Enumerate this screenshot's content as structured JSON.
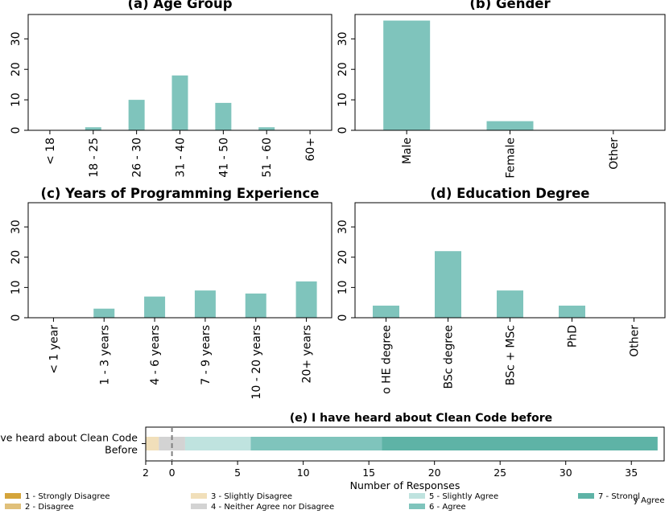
{
  "colors": {
    "bar": "#7fc4bc",
    "strongly_disagree": "#d4a43a",
    "disagree": "#e0c07a",
    "slightly_disagree": "#f1dfba",
    "neutral": "#d3d3d3",
    "slightly_agree": "#bfe3df",
    "agree": "#7fc4bc",
    "strongly_agree": "#5eb3a6"
  },
  "chart_data": [
    {
      "type": "bar",
      "title": "(a) Age Group",
      "categories": [
        "< 18",
        "18 - 25",
        "26 - 30",
        "31 - 40",
        "41 - 50",
        "51 - 60",
        "60+"
      ],
      "values": [
        0,
        1,
        10,
        18,
        9,
        1,
        0
      ],
      "ylim": [
        0,
        38
      ],
      "yticks": [
        0,
        10,
        20,
        30
      ],
      "grid": false
    },
    {
      "type": "bar",
      "title": "(b) Gender",
      "categories": [
        "Male",
        "Female",
        "Other"
      ],
      "values": [
        36,
        3,
        0
      ],
      "ylim": [
        0,
        38
      ],
      "yticks": [
        0,
        10,
        20,
        30
      ],
      "grid": false
    },
    {
      "type": "bar",
      "title": "(c) Years of Programming Experience",
      "categories": [
        "< 1 year",
        "1 - 3 years",
        "4 - 6 years",
        "7 - 9 years",
        "10 - 20 years",
        "20+ years"
      ],
      "values": [
        0,
        3,
        7,
        9,
        8,
        12
      ],
      "ylim": [
        0,
        38
      ],
      "yticks": [
        0,
        10,
        20,
        30
      ],
      "grid": false
    },
    {
      "type": "bar",
      "title": "(d) Education Degree",
      "categories": [
        "o HE degree",
        "BSc degree",
        "BSc + MSc",
        "PhD",
        "Other"
      ],
      "values": [
        4,
        22,
        9,
        4,
        0
      ],
      "ylim": [
        0,
        38
      ],
      "yticks": [
        0,
        10,
        20,
        30
      ],
      "grid": false
    },
    {
      "type": "bar",
      "orientation": "horizontal-stacked",
      "title": "(e) I have heard about Clean Code before",
      "categories": [
        "I've heard about Clean Code Before"
      ],
      "category_lines": [
        "I've heard about Clean Code",
        "Before"
      ],
      "series": [
        {
          "name": "1 - Strongly Disagree",
          "values": [
            0
          ]
        },
        {
          "name": "2 - Disagree",
          "values": [
            0
          ]
        },
        {
          "name": "3 - Slightly Disagree",
          "values": [
            1
          ]
        },
        {
          "name": "4 - Neither Agree nor Disagree",
          "values": [
            2
          ]
        },
        {
          "name": "5 - Slightly Agree",
          "values": [
            5
          ]
        },
        {
          "name": "6 - Agree",
          "values": [
            10
          ]
        },
        {
          "name": "7 - Strongly Agree",
          "values": [
            21
          ]
        }
      ],
      "neutral_split": true,
      "xlabel": "Number of Responses",
      "xlim": [
        -2,
        37.5
      ],
      "xticks": [
        -2,
        0,
        5,
        10,
        15,
        20,
        25,
        30,
        35
      ],
      "xtick_labels": [
        "2",
        "0",
        "5",
        "10",
        "15",
        "20",
        "25",
        "30",
        "35"
      ],
      "zero_line": "dashed",
      "legend": {
        "placement": "bottom",
        "labels": [
          "1 - Strongly Disagree",
          "2 - Disagree",
          "3 - Slightly Disagree",
          "4 - Neither Agree nor Disagree",
          "5 - Slightly Agree",
          "6 - Agree"
        ],
        "last_label_parts": [
          "7 - Strongl",
          "y Agree"
        ]
      }
    }
  ]
}
